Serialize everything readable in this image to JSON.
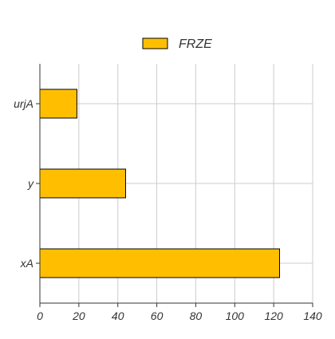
{
  "chart_data": {
    "type": "bar",
    "orientation": "horizontal",
    "categories": [
      "urjA",
      "y",
      "xA"
    ],
    "series": [
      {
        "name": "FRZE",
        "values": [
          19,
          44,
          123
        ],
        "color": "#FFBF00"
      }
    ],
    "xlim": [
      0,
      140
    ],
    "xticks": [
      0,
      20,
      40,
      60,
      80,
      100,
      120,
      140
    ],
    "xtick_labels": [
      "0",
      "20",
      "40",
      "60",
      "80",
      "100",
      "120",
      "140"
    ],
    "grid": true,
    "legend_position": "top-center",
    "bar_stroke": "#000000",
    "grid_color": "#cccccc"
  }
}
